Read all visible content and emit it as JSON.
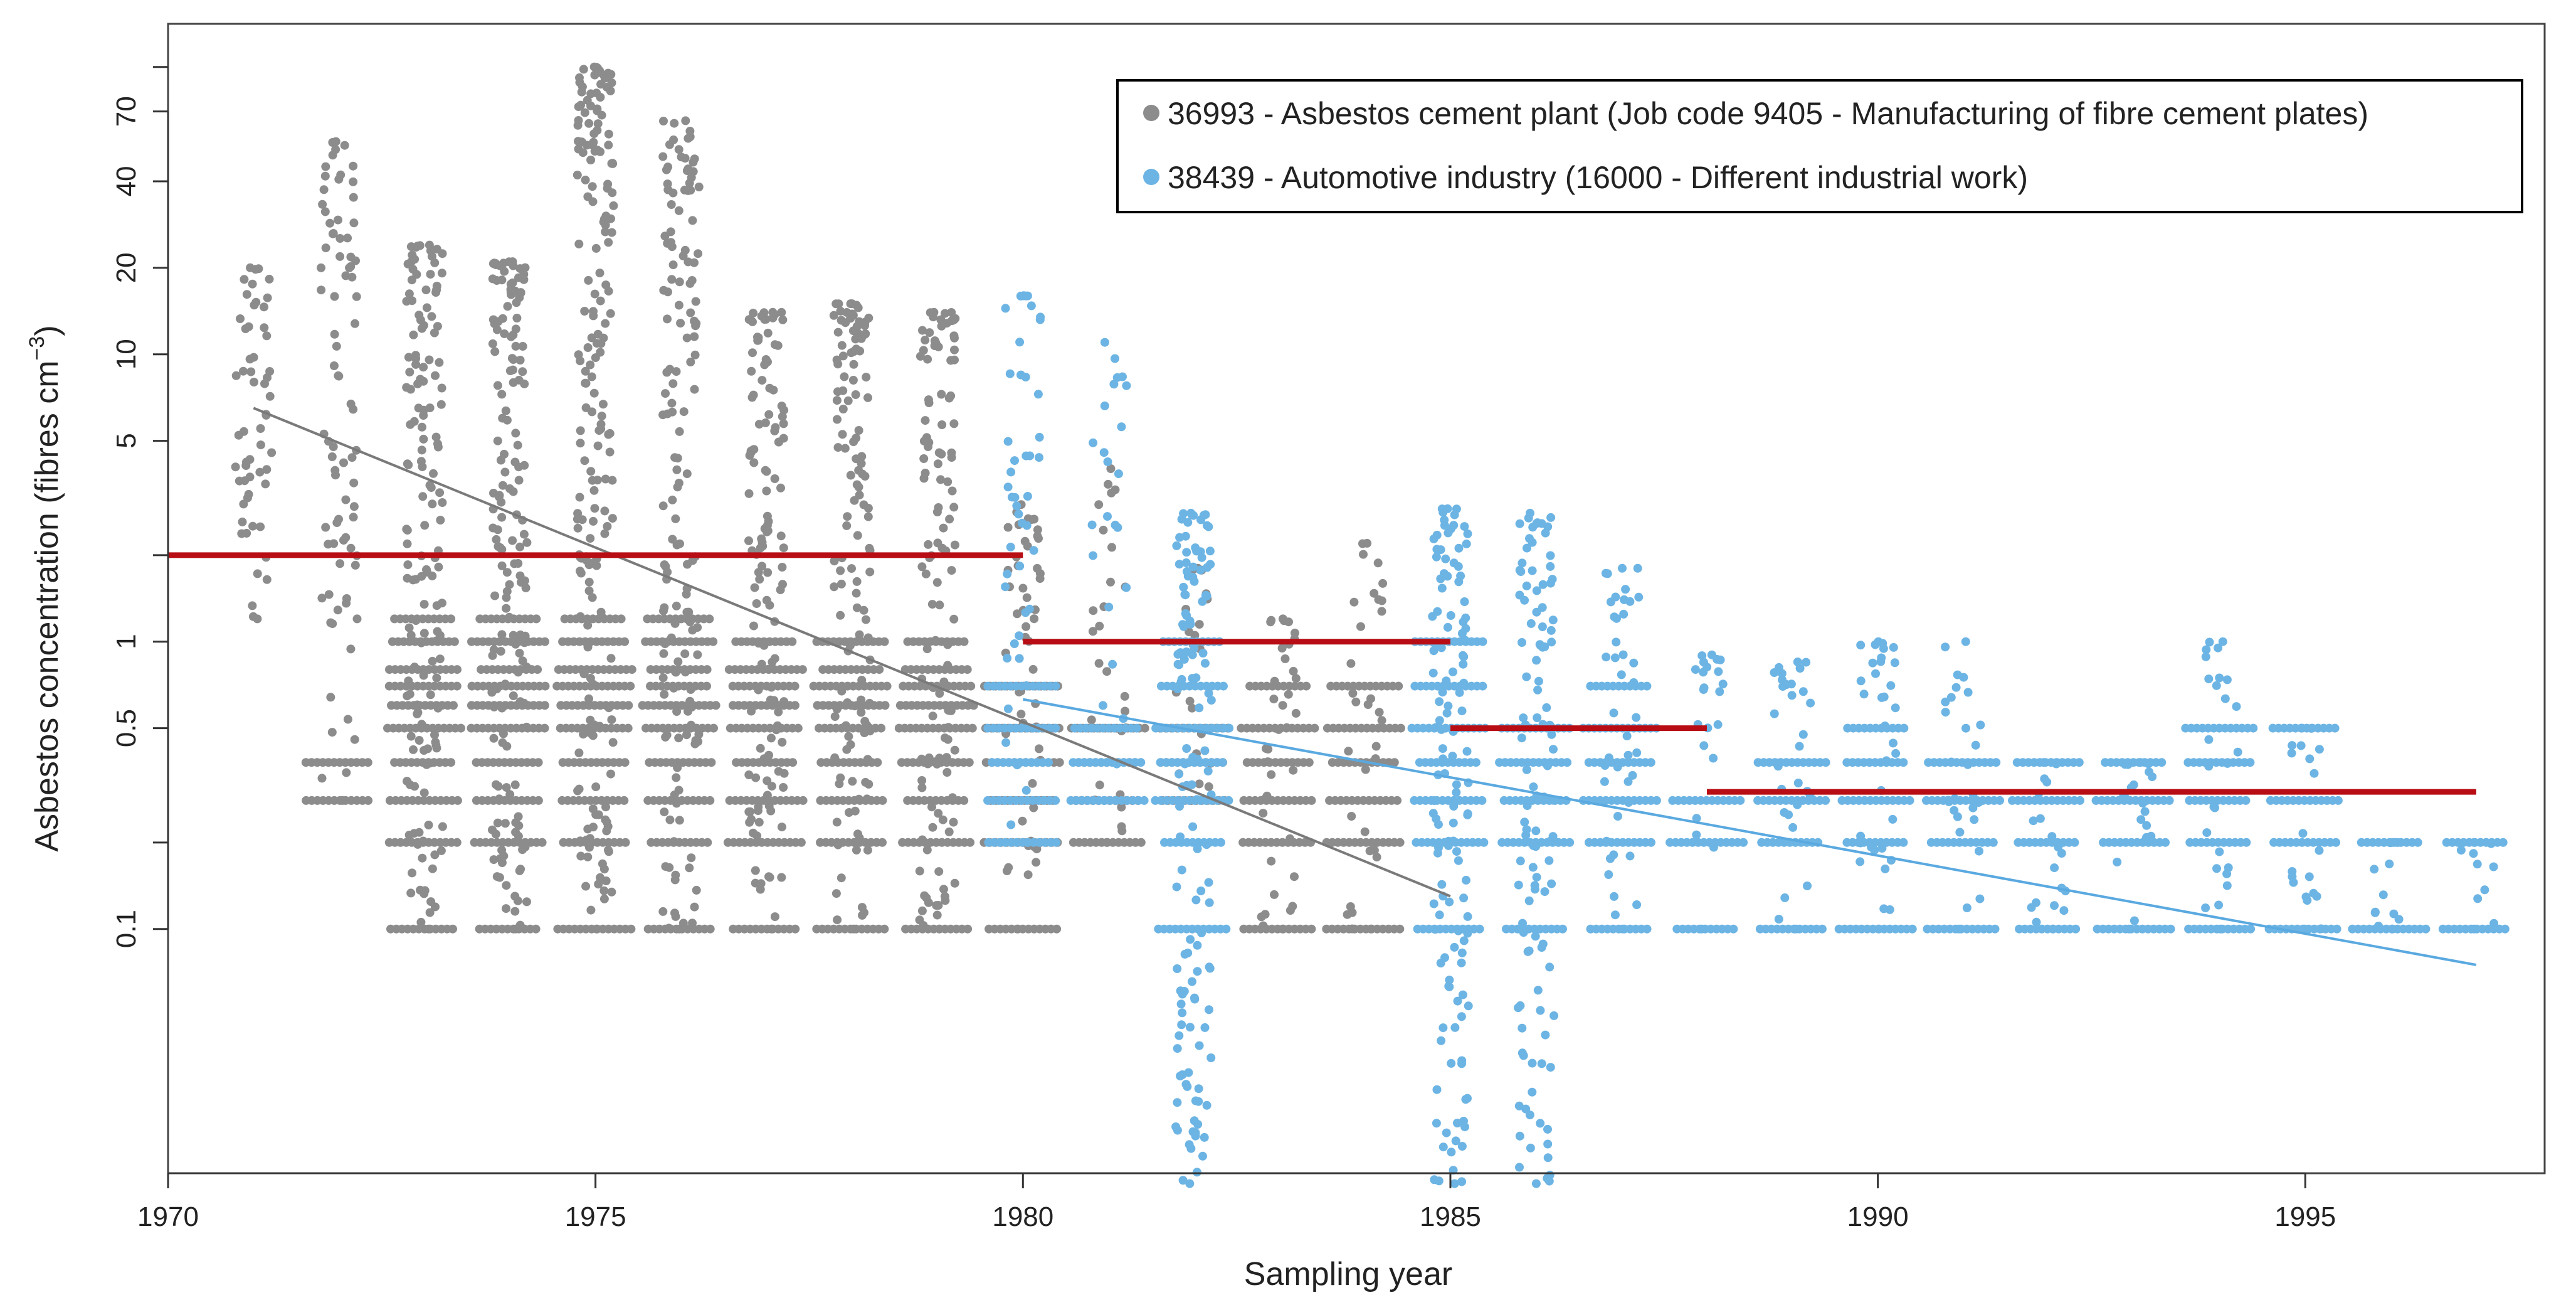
{
  "chart_data": {
    "type": "scatter",
    "xlabel": "Sampling year",
    "ylabel_main": "Asbestos concentration (fibres cm",
    "ylabel_sup": "−3",
    "ylabel_close": ")",
    "xlim": [
      1970,
      1997.8
    ],
    "ylim_log10": [
      -1.85,
      2.15
    ],
    "x_ticks": [
      1970,
      1975,
      1980,
      1985,
      1990,
      1995
    ],
    "x_tick_labels": [
      "1970",
      "1975",
      "1980",
      "1985",
      "1990",
      "1995"
    ],
    "y_ticks": [
      0.1,
      0.5,
      1,
      5,
      10,
      20,
      40,
      70
    ],
    "y_tick_labels": [
      "0.1",
      "0.5",
      "1",
      "5",
      "10",
      "20",
      "40",
      "70"
    ],
    "legend_position": "top-right",
    "colors": {
      "gray": "#8c8c8c",
      "blue": "#6cb4e4",
      "red": "#b80d14",
      "gray_line": "#7a7a7a",
      "blue_line": "#5aa9e0"
    },
    "series": [
      {
        "id": "36993",
        "name": "36993 - Asbestos cement plant (Job code 9405 - Manufacturing of fibre cement plates)",
        "color_key": "gray",
        "years": [
          {
            "x": 1971,
            "max": 20,
            "min": 1.2,
            "lev": [],
            "n": 55
          },
          {
            "x": 1972,
            "max": 55,
            "min": 0.28,
            "lev": [
              0.28,
              0.38
            ],
            "n": 80
          },
          {
            "x": 1973,
            "max": 24,
            "min": 0.1,
            "lev": [
              0.1,
              0.2,
              0.28,
              0.38,
              0.5,
              0.6,
              0.7,
              0.8,
              1.0,
              1.2
            ],
            "n": 150
          },
          {
            "x": 1974,
            "max": 21,
            "min": 0.1,
            "lev": [
              0.1,
              0.2,
              0.28,
              0.38,
              0.5,
              0.6,
              0.7,
              0.8,
              1.0,
              1.2
            ],
            "n": 160
          },
          {
            "x": 1975,
            "max": 100,
            "min": 0.1,
            "lev": [
              0.1,
              0.2,
              0.28,
              0.38,
              0.5,
              0.6,
              0.7,
              0.8,
              1.0,
              1.2
            ],
            "n": 200
          },
          {
            "x": 1976,
            "max": 65,
            "min": 0.1,
            "lev": [
              0.1,
              0.2,
              0.28,
              0.38,
              0.5,
              0.6,
              0.7,
              0.8,
              1.0,
              1.2
            ],
            "n": 150
          },
          {
            "x": 1977,
            "max": 14,
            "min": 0.1,
            "lev": [
              0.1,
              0.2,
              0.28,
              0.38,
              0.5,
              0.6,
              0.7,
              0.8,
              1.0
            ],
            "n": 130
          },
          {
            "x": 1978,
            "max": 15,
            "min": 0.1,
            "lev": [
              0.1,
              0.2,
              0.28,
              0.38,
              0.5,
              0.6,
              0.7,
              0.8,
              1.0
            ],
            "n": 130
          },
          {
            "x": 1979,
            "max": 14,
            "min": 0.1,
            "lev": [
              0.1,
              0.2,
              0.28,
              0.38,
              0.5,
              0.6,
              0.7,
              0.8,
              1.0
            ],
            "n": 120
          },
          {
            "x": 1980,
            "max": 3.0,
            "min": 0.1,
            "lev": [
              0.1,
              0.2,
              0.28,
              0.38,
              0.5,
              0.7
            ],
            "n": 50
          },
          {
            "x": 1981,
            "max": 4.0,
            "min": 0.2,
            "lev": [
              0.2,
              0.28,
              0.38,
              0.5
            ],
            "n": 25
          },
          {
            "x": 1982,
            "max": 1.8,
            "min": 0.28,
            "lev": [
              0.28,
              0.38,
              0.5
            ],
            "n": 20
          },
          {
            "x": 1983,
            "max": 1.2,
            "min": 0.1,
            "lev": [
              0.1,
              0.2,
              0.28,
              0.38,
              0.5,
              0.7
            ],
            "n": 35
          },
          {
            "x": 1984,
            "max": 2.2,
            "min": 0.1,
            "lev": [
              0.1,
              0.2,
              0.28,
              0.38,
              0.5,
              0.7
            ],
            "n": 30
          }
        ],
        "trend": {
          "x1": 1971,
          "y1": 6.5,
          "x2": 1985,
          "y2": 0.13
        }
      },
      {
        "id": "38439",
        "name": "38439 - Automotive industry (16000 - Different industrial work)",
        "color_key": "blue",
        "years": [
          {
            "x": 1980,
            "max": 16,
            "min": 0.2,
            "lev": [
              0.2,
              0.28,
              0.38,
              0.5,
              0.7
            ],
            "n": 45
          },
          {
            "x": 1981,
            "max": 11,
            "min": 0.28,
            "lev": [
              0.28,
              0.38,
              0.5
            ],
            "n": 22
          },
          {
            "x": 1982,
            "max": 2.8,
            "min": 0.013,
            "lev": [
              0.1,
              0.2,
              0.28,
              0.38,
              0.5,
              0.7,
              1.0
            ],
            "n": 130
          },
          {
            "x": 1985,
            "max": 2.9,
            "min": 0.013,
            "lev": [
              0.1,
              0.2,
              0.28,
              0.38,
              0.5,
              0.7,
              1.0
            ],
            "n": 130
          },
          {
            "x": 1986,
            "max": 2.8,
            "min": 0.013,
            "lev": [
              0.1,
              0.2,
              0.28,
              0.38,
              0.5
            ],
            "n": 110
          },
          {
            "x": 1987,
            "max": 1.8,
            "min": 0.1,
            "lev": [
              0.1,
              0.2,
              0.28,
              0.38,
              0.5,
              0.7
            ],
            "n": 40
          },
          {
            "x": 1988,
            "max": 0.9,
            "min": 0.1,
            "lev": [
              0.1,
              0.2,
              0.28
            ],
            "n": 20
          },
          {
            "x": 1989,
            "max": 0.85,
            "min": 0.1,
            "lev": [
              0.1,
              0.2,
              0.28,
              0.38
            ],
            "n": 28
          },
          {
            "x": 1990,
            "max": 1.0,
            "min": 0.1,
            "lev": [
              0.1,
              0.2,
              0.28,
              0.38,
              0.5
            ],
            "n": 32
          },
          {
            "x": 1991,
            "max": 1.0,
            "min": 0.1,
            "lev": [
              0.1,
              0.2,
              0.28,
              0.38
            ],
            "n": 26
          },
          {
            "x": 1992,
            "max": 0.38,
            "min": 0.1,
            "lev": [
              0.1,
              0.2,
              0.28,
              0.38
            ],
            "n": 18
          },
          {
            "x": 1993,
            "max": 0.38,
            "min": 0.1,
            "lev": [
              0.1,
              0.2,
              0.28,
              0.38
            ],
            "n": 18
          },
          {
            "x": 1994,
            "max": 1.0,
            "min": 0.1,
            "lev": [
              0.1,
              0.2,
              0.28,
              0.38,
              0.5
            ],
            "n": 24
          },
          {
            "x": 1995,
            "max": 0.5,
            "min": 0.1,
            "lev": [
              0.1,
              0.2,
              0.28,
              0.5
            ],
            "n": 18
          },
          {
            "x": 1996,
            "max": 0.2,
            "min": 0.1,
            "lev": [
              0.1,
              0.2
            ],
            "n": 10
          },
          {
            "x": 1997,
            "max": 0.2,
            "min": 0.1,
            "lev": [
              0.1,
              0.2
            ],
            "n": 8
          }
        ],
        "trend": {
          "x1": 1980,
          "y1": 0.63,
          "x2": 1997,
          "y2": 0.075
        }
      }
    ],
    "period_means": [
      {
        "x1": 1970,
        "x2": 1980,
        "y": 2.0
      },
      {
        "x1": 1980,
        "x2": 1985,
        "y": 1.0
      },
      {
        "x1": 1985,
        "x2": 1988,
        "y": 0.5
      },
      {
        "x1": 1988,
        "x2": 1997,
        "y": 0.3
      }
    ]
  }
}
